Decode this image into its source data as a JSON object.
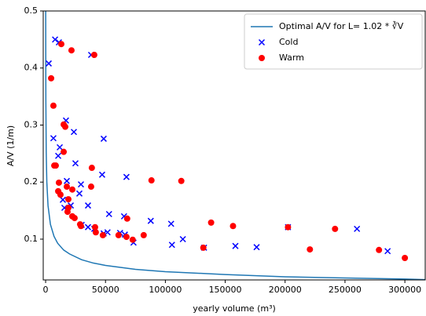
{
  "chart_data": {
    "type": "scatter",
    "xlabel": "yearly volume (m³)",
    "ylabel": "A/V (1/m)",
    "xlim": [
      -2000,
      317000
    ],
    "ylim": [
      0.0285,
      0.5
    ],
    "xticks": [
      0,
      50000,
      100000,
      150000,
      200000,
      250000,
      300000
    ],
    "yticks": [
      0.1,
      0.2,
      0.3,
      0.4,
      0.5
    ],
    "legend": "upper right",
    "series": [
      {
        "name": "Optimal A/V for L= 1.02 * ∛V",
        "style": "line",
        "color": "#1f77b4",
        "x": [
          64,
          200,
          500,
          1000,
          2000,
          4000,
          7000,
          10000,
          15000,
          20000,
          30000,
          40000,
          50000,
          75000,
          100000,
          150000,
          200000,
          250000,
          300000,
          317000
        ],
        "values": [
          0.5,
          0.342,
          0.252,
          0.2,
          0.159,
          0.126,
          0.105,
          0.093,
          0.081,
          0.074,
          0.064,
          0.058,
          0.054,
          0.047,
          0.043,
          0.038,
          0.034,
          0.032,
          0.03,
          0.029
        ]
      },
      {
        "name": "Cold",
        "style": "x",
        "color": "#0000ff",
        "x": [
          2600,
          7900,
          11100,
          38000,
          17000,
          6500,
          48500,
          23600,
          11800,
          10500,
          24900,
          17700,
          29500,
          47200,
          67500,
          14400,
          28200,
          35400,
          15700,
          21000,
          53000,
          65500,
          87800,
          104800,
          30100,
          35400,
          40600,
          48500,
          62200,
          66200,
          73400,
          105500,
          114600,
          132300,
          158500,
          176200,
          202400,
          260000,
          285600,
          51700
        ],
        "values": [
          0.408,
          0.45,
          0.445,
          0.423,
          0.308,
          0.277,
          0.276,
          0.288,
          0.261,
          0.246,
          0.233,
          0.202,
          0.196,
          0.213,
          0.209,
          0.169,
          0.18,
          0.159,
          0.155,
          0.159,
          0.144,
          0.14,
          0.132,
          0.127,
          0.125,
          0.121,
          0.118,
          0.11,
          0.111,
          0.108,
          0.094,
          0.09,
          0.1,
          0.085,
          0.088,
          0.086,
          0.121,
          0.118,
          0.079,
          0.112
        ]
      },
      {
        "name": "Warm",
        "style": "circle",
        "color": "#ff0000",
        "x": [
          13100,
          21600,
          40600,
          4600,
          6500,
          15100,
          16400,
          15100,
          38600,
          7200,
          8500,
          11100,
          10500,
          12400,
          17700,
          22300,
          38000,
          19000,
          19000,
          18300,
          22300,
          24200,
          28800,
          29500,
          41300,
          41900,
          47800,
          60900,
          67500,
          72700,
          81900,
          68100,
          88400,
          113300,
          131700,
          138200,
          156500,
          202400,
          220700,
          241700,
          278400,
          300000
        ],
        "values": [
          0.442,
          0.431,
          0.423,
          0.382,
          0.334,
          0.301,
          0.297,
          0.253,
          0.225,
          0.229,
          0.229,
          0.199,
          0.184,
          0.178,
          0.192,
          0.187,
          0.192,
          0.17,
          0.155,
          0.148,
          0.14,
          0.137,
          0.126,
          0.123,
          0.121,
          0.112,
          0.107,
          0.107,
          0.104,
          0.099,
          0.107,
          0.136,
          0.203,
          0.202,
          0.085,
          0.129,
          0.123,
          0.121,
          0.082,
          0.118,
          0.081,
          0.067
        ]
      }
    ]
  }
}
